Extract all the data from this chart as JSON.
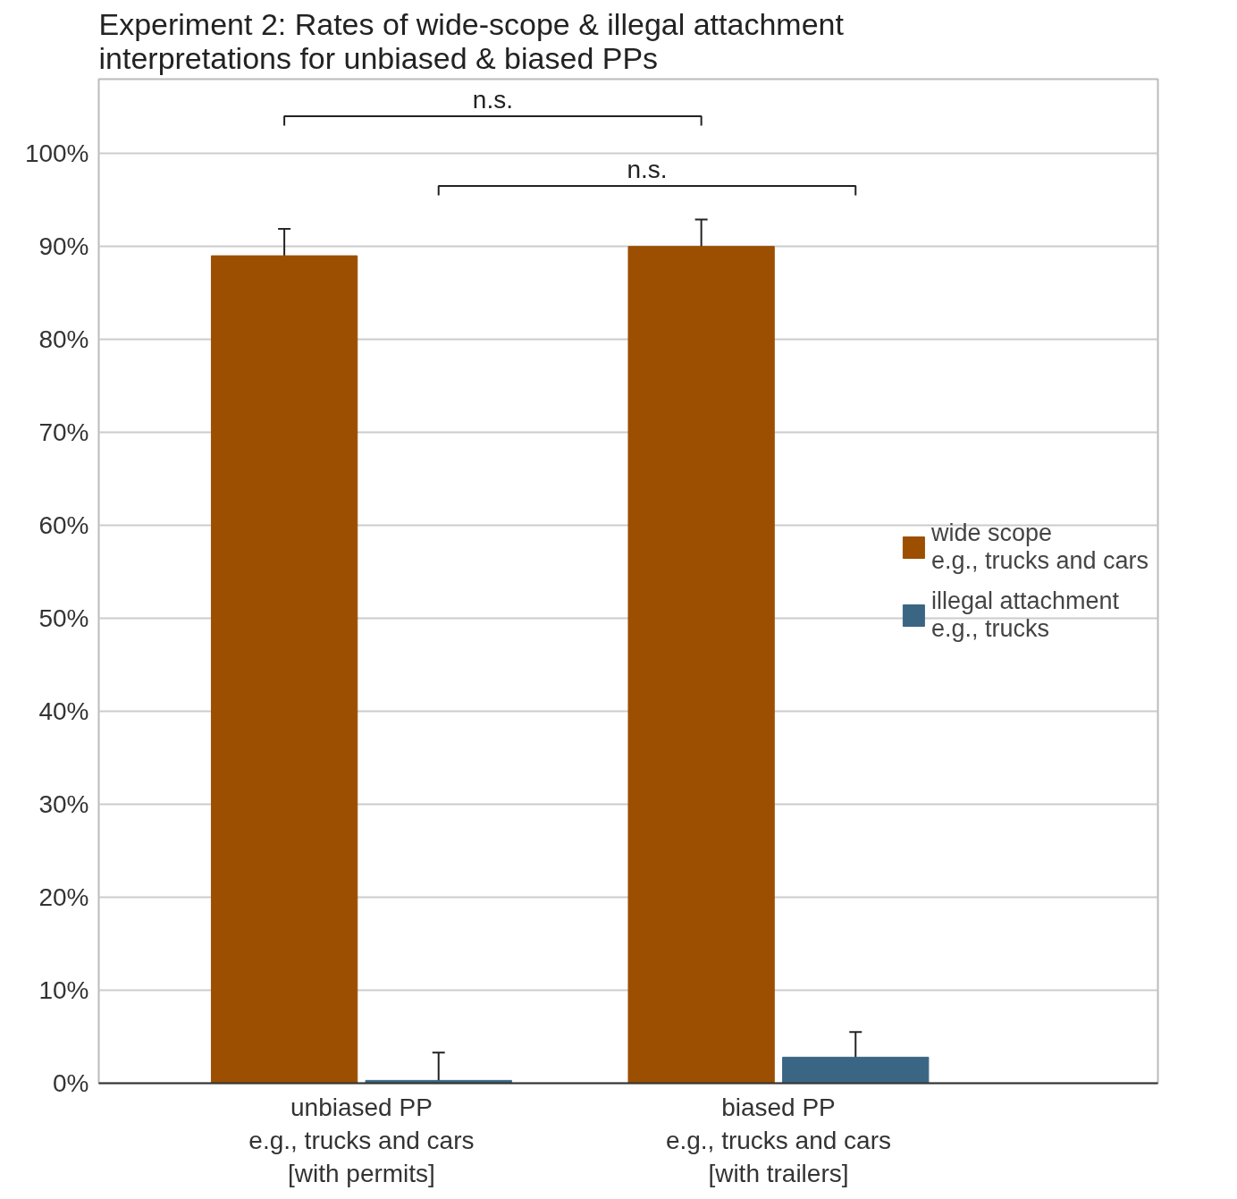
{
  "chart_data": {
    "type": "bar",
    "title": "Experiment 2:  Rates of wide-scope & illegal attachment\n                  interpretations for unbiased & biased PPs",
    "categories": [
      "unbiased PP\ne.g., trucks and cars\n[with permits]",
      "biased PP\ne.g., trucks and cars\n[with trailers]"
    ],
    "series": [
      {
        "name": "wide scope\ne.g., trucks and cars",
        "color": "#9c4f00",
        "values": [
          89,
          90
        ],
        "errors": [
          2.9,
          2.9
        ]
      },
      {
        "name": "illegal attachment\ne.g., trucks",
        "color": "#3b6683",
        "values": [
          0.3,
          2.8
        ],
        "errors": [
          [
            0,
            3.3
          ],
          [
            0.4,
            5.5
          ]
        ]
      }
    ],
    "ylim": [
      0,
      108
    ],
    "yticks": [
      {
        "value": 0,
        "label": "0%"
      },
      {
        "value": 10,
        "label": "10%"
      },
      {
        "value": 20,
        "label": "20%"
      },
      {
        "value": 30,
        "label": "30%"
      },
      {
        "value": 40,
        "label": "40%"
      },
      {
        "value": 50,
        "label": "50%"
      },
      {
        "value": 60,
        "label": "60%"
      },
      {
        "value": 70,
        "label": "70%"
      },
      {
        "value": 80,
        "label": "80%"
      },
      {
        "value": 90,
        "label": "90%"
      },
      {
        "value": 100,
        "label": "100%"
      }
    ],
    "annotations": [
      "n.s.",
      "n.s."
    ],
    "grid": "y",
    "legend": "right"
  }
}
